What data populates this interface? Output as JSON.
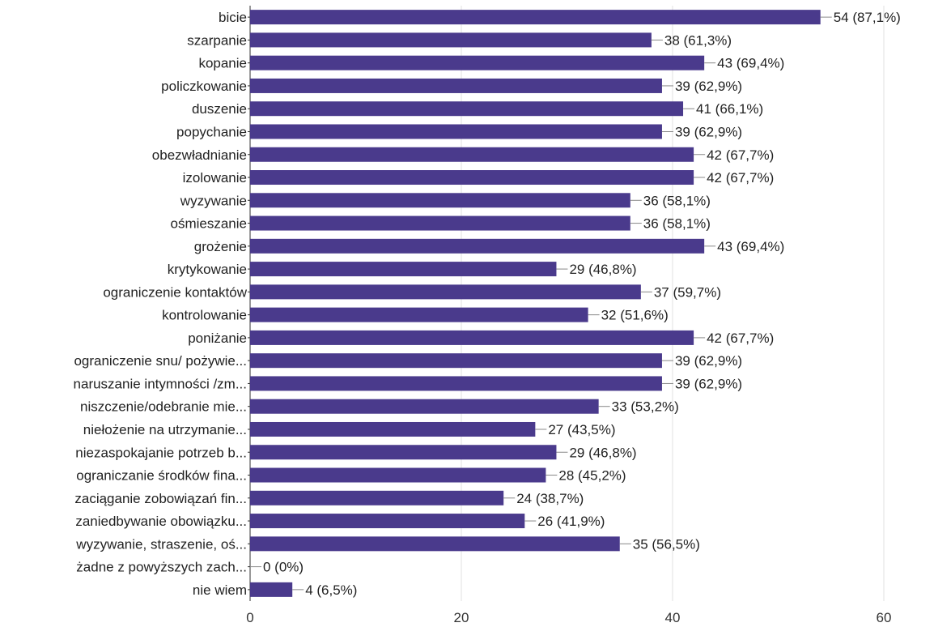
{
  "chart_data": {
    "type": "bar",
    "orientation": "horizontal",
    "title": "",
    "xlabel": "",
    "ylabel": "",
    "xlim": [
      0,
      60
    ],
    "ticks": [
      0,
      20,
      40,
      60
    ],
    "tick_labels": [
      "0",
      "20",
      "40",
      "60"
    ],
    "grid": true,
    "legend": "none",
    "bar_color": "#4a3a8c",
    "categories": [
      "bicie",
      "szarpanie",
      "kopanie",
      "policzkowanie",
      "duszenie",
      "popychanie",
      "obezwładnianie",
      "izolowanie",
      "wyzywanie",
      "ośmieszanie",
      "grożenie",
      "krytykowanie",
      "ograniczenie kontaktów",
      "kontrolowanie",
      "poniżanie",
      "ograniczenie snu/ pożywie...",
      "naruszanie intymności /zm...",
      "niszczenie/odebranie mie...",
      "niełożenie na utrzymanie...",
      "niezaspokajanie potrzeb b...",
      "ograniczanie środków fina...",
      "zaciąganie zobowiązań fin...",
      "zaniedbywanie obowiązku...",
      "wyzywanie, straszenie, oś...",
      "żadne z powyższych zach...",
      "nie wiem"
    ],
    "values": [
      54,
      38,
      43,
      39,
      41,
      39,
      42,
      42,
      36,
      36,
      43,
      29,
      37,
      32,
      42,
      39,
      39,
      33,
      27,
      29,
      28,
      24,
      26,
      35,
      0,
      4
    ],
    "data_labels": [
      "54 (87,1%)",
      "38 (61,3%)",
      "43 (69,4%)",
      "39 (62,9%)",
      "41 (66,1%)",
      "39 (62,9%)",
      "42 (67,7%)",
      "42 (67,7%)",
      "36 (58,1%)",
      "36 (58,1%)",
      "43 (69,4%)",
      "29 (46,8%)",
      "37 (59,7%)",
      "32 (51,6%)",
      "42 (67,7%)",
      "39 (62,9%)",
      "39 (62,9%)",
      "33 (53,2%)",
      "27 (43,5%)",
      "29 (46,8%)",
      "28 (45,2%)",
      "24 (38,7%)",
      "26 (41,9%)",
      "35 (56,5%)",
      "0 (0%)",
      "4 (6,5%)"
    ]
  }
}
